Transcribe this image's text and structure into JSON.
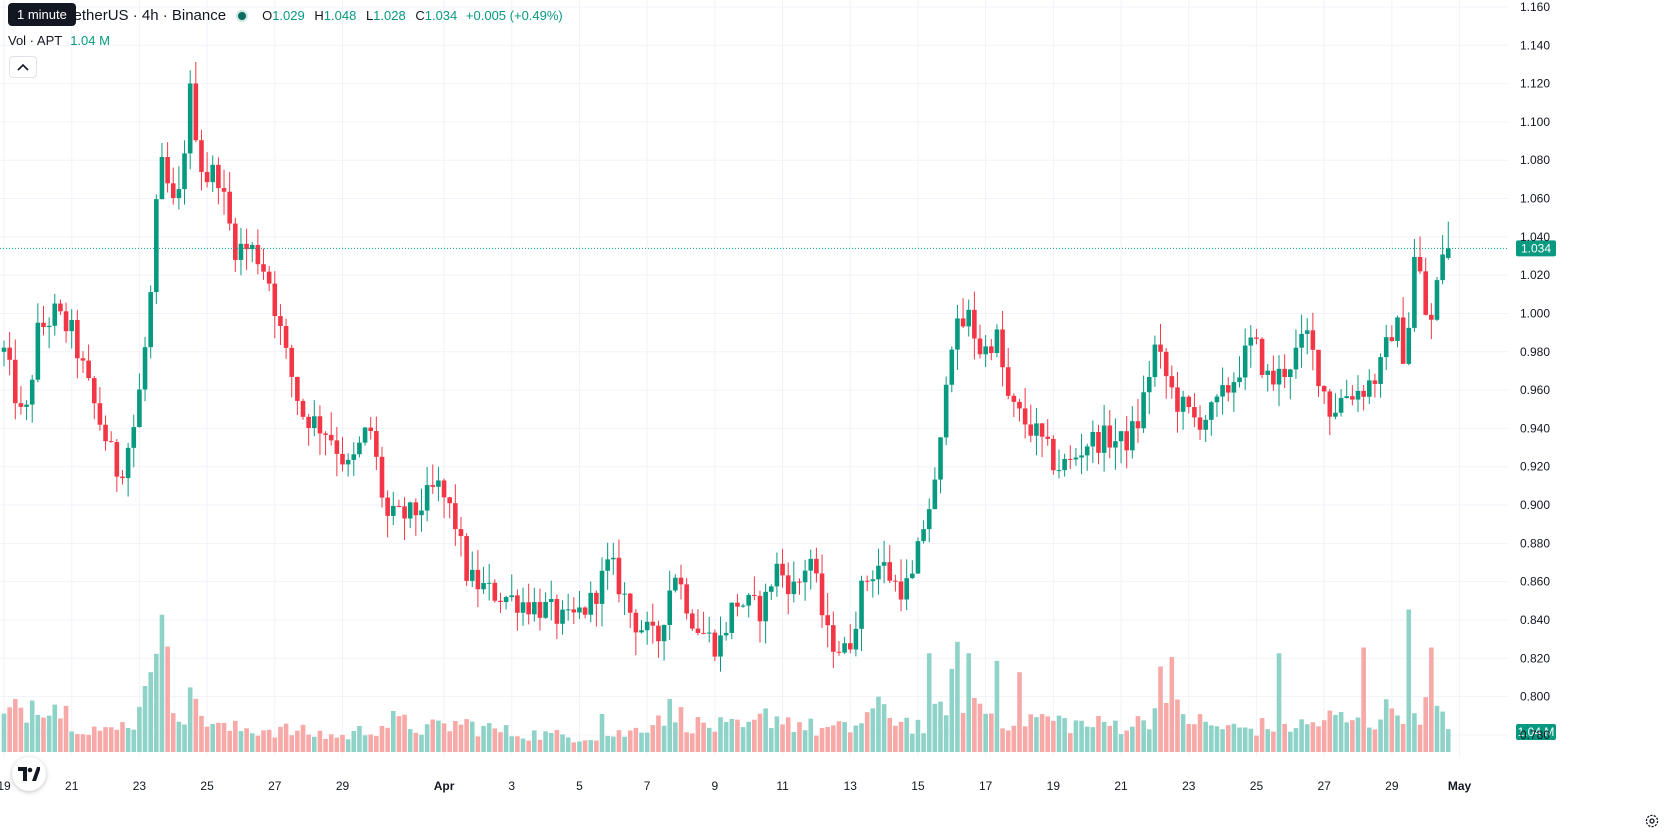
{
  "header": {
    "symbol_title": "TetherUS · 4h · Binance",
    "open_label": "O",
    "open": "1.029",
    "high_label": "H",
    "high": "1.048",
    "low_label": "L",
    "low": "1.028",
    "close_label": "C",
    "close": "1.034",
    "change": "+0.005 (+0.49%)",
    "volume_label": "Vol · APT",
    "volume_value": "1.04 M",
    "tooltip": "1 minute"
  },
  "icons": {
    "collapse": "chevron-up-icon",
    "logo": "tradingview-logo-icon",
    "settings": "gear-icon"
  },
  "colors": {
    "up": "#089981",
    "down": "#f23645",
    "up_volume": "#8fd3c8",
    "down_volume": "#f7a9a7",
    "grid": "#f0f3fa",
    "price_line": "#089981"
  },
  "chart_data": {
    "type": "candlestick",
    "title": "",
    "xlabel": "",
    "ylabel": "",
    "ylim": [
      0.775,
      1.16
    ],
    "y_ticks": [
      "1.160",
      "1.140",
      "1.120",
      "1.100",
      "1.080",
      "1.060",
      "1.040",
      "1.020",
      "1.000",
      "0.980",
      "0.960",
      "0.940",
      "0.920",
      "0.900",
      "0.880",
      "0.860",
      "0.840",
      "0.820",
      "0.800",
      "0.780"
    ],
    "x_ticks": [
      "19",
      "21",
      "23",
      "25",
      "27",
      "29",
      "Apr",
      "3",
      "5",
      "7",
      "9",
      "11",
      "13",
      "15",
      "17",
      "19",
      "21",
      "23",
      "25",
      "27",
      "29",
      "May"
    ],
    "x_tick_days": [
      0,
      2,
      4,
      6,
      8,
      10,
      13,
      15,
      17,
      19,
      21,
      23,
      25,
      27,
      29,
      31,
      33,
      35,
      37,
      39,
      41,
      43
    ],
    "last_price_label": "1.034",
    "volume_label": "1.04 M",
    "anchors": [
      [
        0,
        0.98
      ],
      [
        0.6,
        0.94
      ],
      [
        1.0,
        0.99
      ],
      [
        1.5,
        1.0
      ],
      [
        2.0,
        0.99
      ],
      [
        2.7,
        0.95
      ],
      [
        3.4,
        0.915
      ],
      [
        3.9,
        0.945
      ],
      [
        4.3,
        1.0
      ],
      [
        4.6,
        1.08
      ],
      [
        5.1,
        1.05
      ],
      [
        5.5,
        1.115
      ],
      [
        5.9,
        1.07
      ],
      [
        6.3,
        1.075
      ],
      [
        6.8,
        1.035
      ],
      [
        7.4,
        1.033
      ],
      [
        7.8,
        1.02
      ],
      [
        8.3,
        0.98
      ],
      [
        8.8,
        0.948
      ],
      [
        9.6,
        0.938
      ],
      [
        10.2,
        0.918
      ],
      [
        10.8,
        0.942
      ],
      [
        11.3,
        0.893
      ],
      [
        12.1,
        0.895
      ],
      [
        12.8,
        0.91
      ],
      [
        13.3,
        0.893
      ],
      [
        13.7,
        0.862
      ],
      [
        14.3,
        0.855
      ],
      [
        15.2,
        0.85
      ],
      [
        16.1,
        0.845
      ],
      [
        16.6,
        0.838
      ],
      [
        17.3,
        0.848
      ],
      [
        17.9,
        0.87
      ],
      [
        18.6,
        0.84
      ],
      [
        19.3,
        0.828
      ],
      [
        19.8,
        0.867
      ],
      [
        20.4,
        0.838
      ],
      [
        21.1,
        0.826
      ],
      [
        21.6,
        0.85
      ],
      [
        22.4,
        0.845
      ],
      [
        22.8,
        0.868
      ],
      [
        23.4,
        0.855
      ],
      [
        23.8,
        0.875
      ],
      [
        24.3,
        0.832
      ],
      [
        24.9,
        0.822
      ],
      [
        25.4,
        0.86
      ],
      [
        25.9,
        0.87
      ],
      [
        26.4,
        0.857
      ],
      [
        26.8,
        0.858
      ],
      [
        27.2,
        0.892
      ],
      [
        27.6,
        0.915
      ],
      [
        27.9,
        0.985
      ],
      [
        28.5,
        0.998
      ],
      [
        28.9,
        0.978
      ],
      [
        29.3,
        0.99
      ],
      [
        29.7,
        0.952
      ],
      [
        30.5,
        0.937
      ],
      [
        31.1,
        0.92
      ],
      [
        31.5,
        0.922
      ],
      [
        32.0,
        0.933
      ],
      [
        32.6,
        0.935
      ],
      [
        33.1,
        0.932
      ],
      [
        33.5,
        0.943
      ],
      [
        34.0,
        0.982
      ],
      [
        34.6,
        0.955
      ],
      [
        35.2,
        0.944
      ],
      [
        35.7,
        0.948
      ],
      [
        36.3,
        0.965
      ],
      [
        36.9,
        0.986
      ],
      [
        37.4,
        0.963
      ],
      [
        37.9,
        0.972
      ],
      [
        38.5,
        0.988
      ],
      [
        39.2,
        0.948
      ],
      [
        39.6,
        0.958
      ],
      [
        40.1,
        0.96
      ],
      [
        40.6,
        0.968
      ],
      [
        41.1,
        0.997
      ],
      [
        41.4,
        0.975
      ],
      [
        41.7,
        1.035
      ],
      [
        42.1,
        0.988
      ],
      [
        42.5,
        1.033
      ],
      [
        42.7,
        1.034
      ]
    ],
    "volume_anchors": [
      [
        0,
        0.18
      ],
      [
        1.2,
        0.3
      ],
      [
        2.2,
        0.15
      ],
      [
        3.2,
        0.1
      ],
      [
        4.0,
        0.2
      ],
      [
        4.4,
        0.85
      ],
      [
        5.0,
        0.25
      ],
      [
        5.6,
        0.22
      ],
      [
        6.5,
        0.12
      ],
      [
        8.0,
        0.12
      ],
      [
        10.0,
        0.08
      ],
      [
        11.5,
        0.16
      ],
      [
        12.5,
        0.12
      ],
      [
        13.5,
        0.15
      ],
      [
        15.0,
        0.1
      ],
      [
        17.0,
        0.08
      ],
      [
        18.5,
        0.1
      ],
      [
        19.6,
        0.22
      ],
      [
        20.5,
        0.14
      ],
      [
        22.0,
        0.12
      ],
      [
        22.6,
        0.2
      ],
      [
        24.0,
        0.12
      ],
      [
        25.0,
        0.12
      ],
      [
        25.7,
        0.22
      ],
      [
        26.4,
        0.18
      ],
      [
        27.3,
        0.12
      ],
      [
        28.0,
        0.35
      ],
      [
        28.7,
        0.25
      ],
      [
        29.5,
        0.18
      ],
      [
        30.5,
        0.18
      ],
      [
        32.0,
        0.14
      ],
      [
        33.5,
        0.15
      ],
      [
        34.3,
        0.25
      ],
      [
        35.5,
        0.14
      ],
      [
        36.5,
        0.12
      ],
      [
        37.5,
        0.14
      ],
      [
        38.5,
        0.14
      ],
      [
        39.3,
        0.18
      ],
      [
        40.2,
        0.14
      ],
      [
        41.2,
        0.25
      ],
      [
        42.2,
        0.22
      ],
      [
        42.7,
        0.12
      ]
    ],
    "volume_spikes": [
      [
        4.4,
        0.95
      ],
      [
        4.25,
        0.42
      ],
      [
        5.5,
        0.34
      ],
      [
        17.6,
        0.2
      ],
      [
        27.3,
        0.52
      ],
      [
        28.2,
        0.58
      ],
      [
        28.5,
        0.52
      ],
      [
        29.4,
        0.48
      ],
      [
        30.0,
        0.42
      ],
      [
        34.5,
        0.5
      ],
      [
        34.2,
        0.45
      ],
      [
        37.6,
        0.52
      ],
      [
        40.2,
        0.55
      ],
      [
        41.5,
        0.75
      ],
      [
        42.1,
        0.55
      ]
    ]
  }
}
